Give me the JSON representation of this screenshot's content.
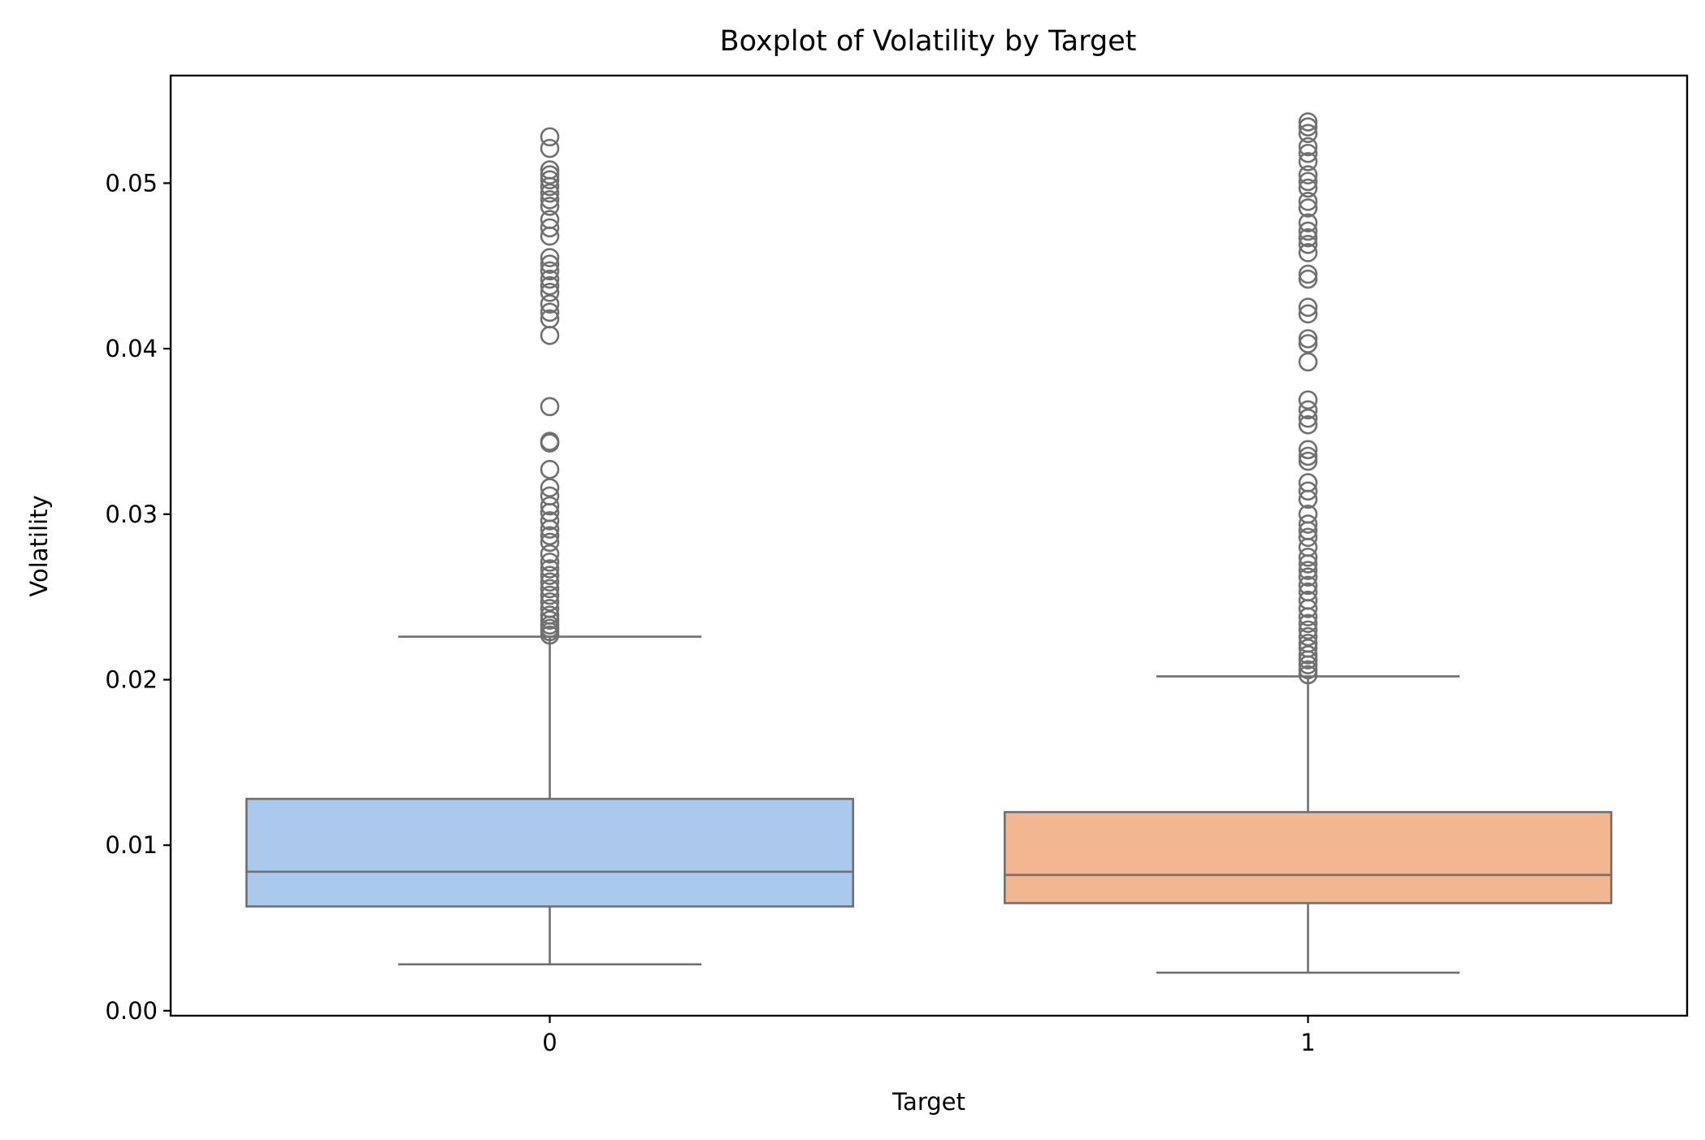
{
  "chart_data": {
    "type": "boxplot",
    "title": "Boxplot of Volatility by Target",
    "xlabel": "Target",
    "ylabel": "Volatility",
    "categories": [
      "0",
      "1"
    ],
    "ylim": [
      -0.0003,
      0.0565
    ],
    "yticks": [
      0.0,
      0.01,
      0.02,
      0.03,
      0.04,
      0.05
    ],
    "ytick_labels": [
      "0.00",
      "0.01",
      "0.02",
      "0.03",
      "0.04",
      "0.05"
    ],
    "grid": false,
    "edge_color": "#707070",
    "boxes": [
      {
        "category": "0",
        "color": "#abc9ed",
        "whisker_low": 0.0028,
        "q1": 0.0063,
        "median": 0.0084,
        "q3": 0.0128,
        "whisker_high": 0.0226,
        "outliers": [
          0.0227,
          0.0229,
          0.0231,
          0.0233,
          0.0236,
          0.0239,
          0.0243,
          0.0247,
          0.0251,
          0.0255,
          0.0259,
          0.0263,
          0.0267,
          0.0271,
          0.0276,
          0.0283,
          0.0287,
          0.0291,
          0.0296,
          0.0301,
          0.0305,
          0.0311,
          0.0316,
          0.0327,
          0.0343,
          0.0344,
          0.0365,
          0.0408,
          0.0418,
          0.0422,
          0.0427,
          0.0434,
          0.0438,
          0.0442,
          0.0447,
          0.0451,
          0.0455,
          0.0468,
          0.0473,
          0.0478,
          0.0486,
          0.049,
          0.0494,
          0.0498,
          0.0502,
          0.0505,
          0.0508,
          0.0521,
          0.0528
        ]
      },
      {
        "category": "1",
        "color": "#f2b790",
        "whisker_low": 0.0023,
        "q1": 0.0065,
        "median": 0.0082,
        "q3": 0.012,
        "whisker_high": 0.0202,
        "outliers": [
          0.0203,
          0.0206,
          0.0209,
          0.0212,
          0.0215,
          0.0219,
          0.0222,
          0.0226,
          0.023,
          0.0234,
          0.0238,
          0.0243,
          0.0248,
          0.0253,
          0.0257,
          0.0262,
          0.0266,
          0.027,
          0.0274,
          0.028,
          0.0286,
          0.029,
          0.0294,
          0.03,
          0.0309,
          0.0314,
          0.0319,
          0.0332,
          0.0335,
          0.0339,
          0.0354,
          0.0358,
          0.0363,
          0.0369,
          0.0392,
          0.0403,
          0.0406,
          0.0421,
          0.0425,
          0.0442,
          0.0445,
          0.0458,
          0.0463,
          0.0467,
          0.0471,
          0.0476,
          0.0485,
          0.0489,
          0.0497,
          0.0501,
          0.0505,
          0.0513,
          0.0518,
          0.0522,
          0.053,
          0.0534,
          0.0537
        ]
      }
    ]
  }
}
